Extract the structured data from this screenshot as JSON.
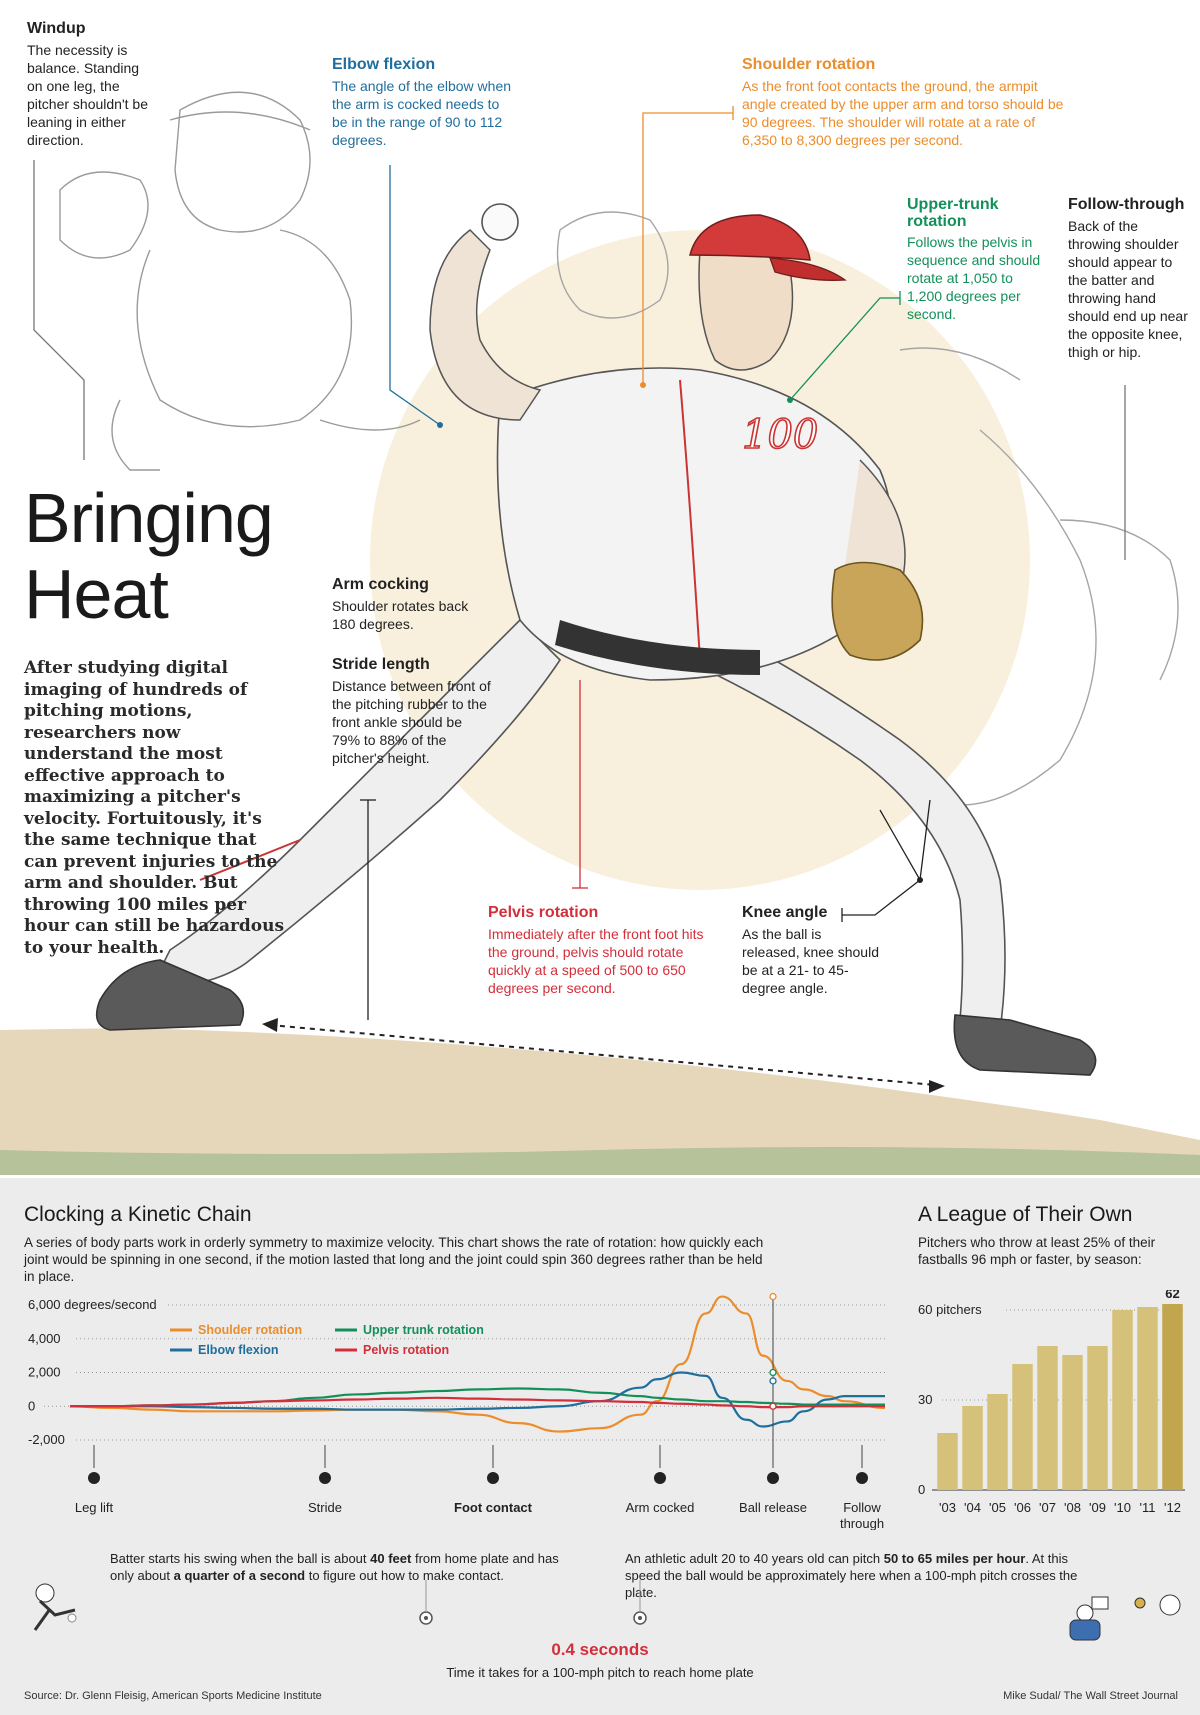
{
  "title": {
    "line1": "Bringing",
    "line2": "Heat"
  },
  "intro": "After studying digital imaging of hundreds of pitching motions, researchers now understand the most effective approach to maximizing a pitcher's velocity. Fortuitously, it's the same technique that can prevent injuries to the arm and shoulder. But throwing 100 miles per hour can still be hazardous to your health.",
  "jersey_number": "100",
  "labels": {
    "windup": {
      "heading": "Windup",
      "body": "The necessity is balance. Standing on one leg, the pitcher shouldn't be leaning in either direction."
    },
    "elbow_flexion": {
      "heading": "Elbow flexion",
      "body": "The angle of the elbow when the arm is cocked needs to be in the range of 90 to 112 degrees."
    },
    "shoulder_rotation": {
      "heading": "Shoulder rotation",
      "body": "As the front foot contacts the ground, the armpit angle created by the upper arm and torso should be 90 degrees. The shoulder will rotate at a rate of 6,350 to 8,300 degrees per second."
    },
    "upper_trunk_rotation": {
      "heading": "Upper-trunk rotation",
      "body": "Follows the pelvis in sequence and should rotate at 1,050 to 1,200 degrees per second."
    },
    "follow_through": {
      "heading": "Follow-through",
      "body": "Back of the throwing shoulder should appear to the batter and throwing hand should end up near the opposite knee, thigh or hip."
    },
    "arm_cocking": {
      "heading": "Arm cocking",
      "body": "Shoulder rotates back 180 degrees."
    },
    "stride_length": {
      "heading": "Stride length",
      "body": "Distance between front of the pitching rubber to the front ankle should be 79% to 88% of the pitcher's height."
    },
    "pelvis_rotation": {
      "heading": "Pelvis rotation",
      "body": "Immediately after the front foot hits the ground, pelvis should rotate quickly at a speed of 500 to 650 degrees per second."
    },
    "knee_angle": {
      "heading": "Knee angle",
      "body": "As the ball is released, knee should be at a 21- to 45-degree angle."
    }
  },
  "kinetic_chain": {
    "title": "Clocking a Kinetic Chain",
    "description": "A series of body parts work in orderly symmetry to maximize velocity. This chart shows the rate of rotation: how quickly each joint would be spinning in one second, if the motion lasted that long and the joint could spin 360 degrees rather than be held in place."
  },
  "league": {
    "title": "A League of Their Own",
    "description": "Pitchers who throw at least 25% of their fastballs 96 mph or faster, by season:"
  },
  "timeline": {
    "batter_note_a": "Batter starts his swing when the ball is about ",
    "batter_note_b": "40 feet",
    "batter_note_c": " from home plate and has only about ",
    "batter_note_d": "a quarter of a second",
    "batter_note_e": " to figure out how to make contact.",
    "adult_note_a": "An athletic adult 20 to 40 years old can pitch ",
    "adult_note_b": "50 to 65 miles per hour",
    "adult_note_c": ". At this speed the ball would be approximately here when a 100-mph pitch crosses the plate.",
    "duration": "0.4 seconds",
    "duration_caption": "Time it takes for a 100-mph pitch to reach home plate"
  },
  "footer": {
    "source": "Source: Dr. Glenn Fleisig, American Sports Medicine Institute",
    "credit": "Mike Sudal/ The Wall Street Journal"
  },
  "colors": {
    "shoulder": "#ec8d2b",
    "elbow": "#1f6e9c",
    "trunk": "#13905a",
    "pelvis": "#d32f3b",
    "bar": "#d6c17a",
    "bar_last": "#c2a64d"
  },
  "chart_data": [
    {
      "type": "line",
      "title": "",
      "ylabel": "degrees/second",
      "ylim": [
        -2000,
        6000
      ],
      "yticks": [
        {
          "value": 6000,
          "label": "6,000 degrees/second"
        },
        {
          "value": 4000,
          "label": "4,000"
        },
        {
          "value": 2000,
          "label": "2,000"
        },
        {
          "value": 0,
          "label": "0"
        },
        {
          "value": -2000,
          "label": "-2,000"
        }
      ],
      "stages": [
        "Leg lift",
        "Stride",
        "Foot contact",
        "Arm cocked",
        "Ball release",
        "Follow through"
      ],
      "x": [
        0,
        5,
        10,
        15,
        20,
        25,
        30,
        35,
        40,
        45,
        50,
        55,
        60,
        65,
        70,
        72,
        75,
        78,
        80,
        83,
        85,
        88,
        90,
        93,
        95,
        100
      ],
      "series": [
        {
          "name": "Shoulder rotation",
          "values": [
            0,
            -100,
            -200,
            -300,
            -300,
            -300,
            -250,
            -200,
            -200,
            -300,
            -500,
            -1000,
            -1500,
            -1300,
            -500,
            300,
            2500,
            5500,
            6500,
            5500,
            3000,
            1500,
            1000,
            600,
            300,
            -100
          ]
        },
        {
          "name": "Upper trunk rotation",
          "values": [
            0,
            0,
            50,
            100,
            200,
            300,
            500,
            700,
            800,
            900,
            1000,
            1050,
            1000,
            800,
            600,
            500,
            400,
            300,
            300,
            250,
            200,
            150,
            100,
            100,
            100,
            100
          ]
        },
        {
          "name": "Elbow flexion",
          "values": [
            0,
            0,
            0,
            -50,
            -100,
            -150,
            -150,
            -200,
            -200,
            -200,
            -150,
            -100,
            0,
            300,
            1100,
            1600,
            2000,
            1800,
            500,
            -800,
            -1200,
            -900,
            -300,
            400,
            600,
            600
          ]
        },
        {
          "name": "Pelvis rotation",
          "values": [
            0,
            0,
            50,
            100,
            200,
            300,
            350,
            400,
            450,
            500,
            450,
            400,
            350,
            300,
            250,
            200,
            150,
            100,
            50,
            0,
            -50,
            -50,
            0,
            0,
            0,
            0
          ]
        }
      ]
    },
    {
      "type": "bar",
      "title": "",
      "categories": [
        "'03",
        "'04",
        "'05",
        "'06",
        "'07",
        "'08",
        "'09",
        "'10",
        "'11",
        "'12"
      ],
      "values": [
        19,
        28,
        32,
        42,
        48,
        45,
        48,
        60,
        61,
        62
      ],
      "ylim": [
        0,
        62
      ],
      "yticks": [
        {
          "value": 0,
          "label": "0"
        },
        {
          "value": 30,
          "label": "30"
        },
        {
          "value": 60,
          "label": "60 pitchers"
        }
      ],
      "data_label_last": "62"
    }
  ]
}
